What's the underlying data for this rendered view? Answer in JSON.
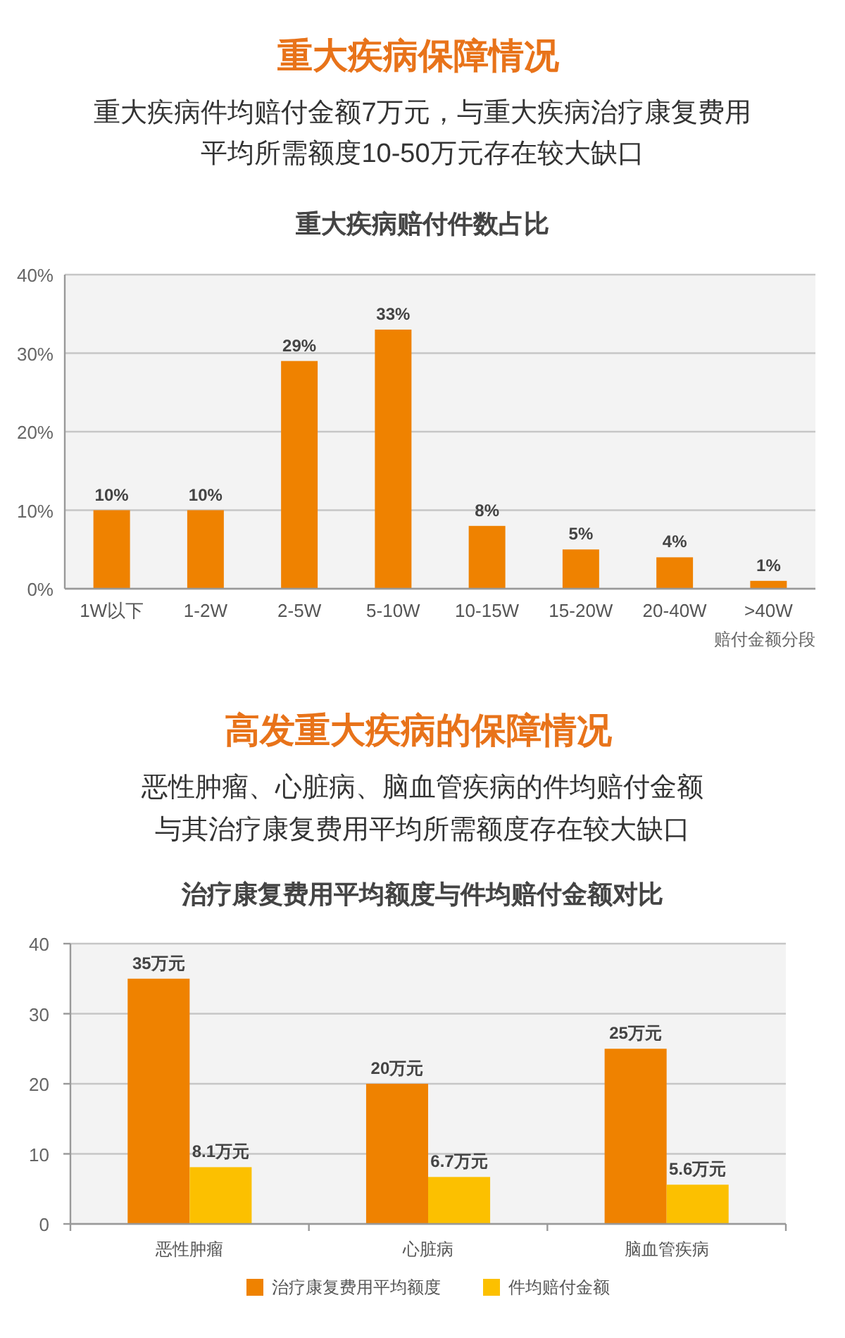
{
  "chart_data": [
    {
      "type": "bar",
      "title": "重大疾病保障情况",
      "subtitle": "重大疾病件均赔付金额7万元，与重大疾病治疗康复费用平均所需额度10-50万元存在较大缺口",
      "annotations": [
        "重大疾病赔付件数占比"
      ],
      "xlabel": "赔付金额分段",
      "categories": [
        "1W以下",
        "1-2W",
        "2-5W",
        "5-10W",
        "10-15W",
        "15-20W",
        "20-40W",
        ">40W"
      ],
      "values": [
        10,
        10,
        29,
        33,
        8,
        5,
        4,
        1
      ],
      "color": "#ef8200",
      "value_labels": [
        "10%",
        "10%",
        "29%",
        "33%",
        "8%",
        "5%",
        "4%",
        "1%"
      ],
      "ylim": [
        0,
        40
      ],
      "yticks": [
        {
          "value": 0,
          "label": "0%"
        },
        {
          "value": 10,
          "label": "10%"
        },
        {
          "value": 20,
          "label": "20%"
        },
        {
          "value": 30,
          "label": "30%"
        },
        {
          "value": 40,
          "label": "40%"
        }
      ],
      "grid": "y"
    },
    {
      "type": "bar",
      "title": "高发重大疾病的保障情况",
      "subtitle": "恶性肿瘤、心脏病、脑血管疾病的件均赔付金额与其治疗康复费用平均所需额度存在较大缺口",
      "annotations": [
        "治疗康复费用平均额度与件均赔付金额对比"
      ],
      "categories": [
        "恶性肿瘤",
        "心脏病",
        "脑血管疾病"
      ],
      "series": [
        {
          "name": "治疗康复费用平均额度",
          "color": "#ef8200",
          "values": [
            35,
            20,
            25
          ],
          "value_labels": [
            "35万元",
            "20万元",
            "25万元"
          ]
        },
        {
          "name": "件均赔付金额",
          "color": "#fcc000",
          "values": [
            8.1,
            6.7,
            5.6
          ],
          "value_labels": [
            "8.1万元",
            "6.7万元",
            "5.6万元"
          ]
        }
      ],
      "ylim": [
        0,
        40
      ],
      "yticks": [
        0,
        10,
        20,
        30,
        40
      ],
      "grid": "y",
      "legend": "bottom"
    }
  ]
}
